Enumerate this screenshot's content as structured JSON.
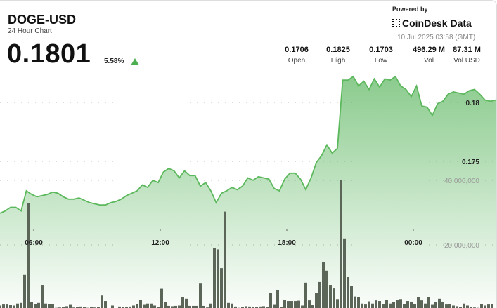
{
  "header": {
    "symbol": "DOGE-USD",
    "subtitle": "24 Hour Chart",
    "price": "0.1801",
    "change": "5.58%",
    "change_direction": "up",
    "powered_by": "Powered by",
    "brand": "CoinDesk Data",
    "timestamp": "10 Jul 2025 03:58 (GMT)"
  },
  "stats": [
    {
      "value": "0.1706",
      "label": "Open"
    },
    {
      "value": "0.1825",
      "label": "High"
    },
    {
      "value": "0.1703",
      "label": "Low"
    },
    {
      "value": "496.29 M",
      "label": "Vol"
    },
    {
      "value": "87.31 M",
      "label": "Vol USD"
    }
  ],
  "colors": {
    "line": "#5cb85c",
    "fill": "#4caf50",
    "volume": "#5b6659",
    "up": "#4caf50"
  },
  "chart_data": {
    "type": "area",
    "price": {
      "start_time": "2025-07-09 04:24",
      "interval_minutes": 15,
      "values": [
        0.1706,
        0.1708,
        0.1711,
        0.1711,
        0.1708,
        0.1725,
        0.1722,
        0.172,
        0.1721,
        0.1722,
        0.1724,
        0.1723,
        0.172,
        0.1718,
        0.1718,
        0.1719,
        0.1717,
        0.1715,
        0.1714,
        0.1713,
        0.1713,
        0.1715,
        0.1716,
        0.1718,
        0.1721,
        0.1723,
        0.1725,
        0.173,
        0.1728,
        0.1734,
        0.1732,
        0.1741,
        0.1744,
        0.1742,
        0.1736,
        0.1742,
        0.1738,
        0.1738,
        0.1729,
        0.1732,
        0.1725,
        0.1715,
        0.1723,
        0.1725,
        0.1728,
        0.1726,
        0.1729,
        0.1736,
        0.1734,
        0.1737,
        0.1736,
        0.1735,
        0.1727,
        0.1725,
        0.1735,
        0.174,
        0.174,
        0.1735,
        0.1726,
        0.1736,
        0.1749,
        0.1755,
        0.1764,
        0.1757,
        0.1761,
        0.1819,
        0.1819,
        0.1822,
        0.1814,
        0.1818,
        0.1811,
        0.182,
        0.1813,
        0.182,
        0.1819,
        0.1822,
        0.1814,
        0.1811,
        0.1805,
        0.1814,
        0.1797,
        0.1796,
        0.1789,
        0.1799,
        0.1801,
        0.1807,
        0.1809,
        0.1808,
        0.1807,
        0.181,
        0.1811,
        0.1807,
        0.1802,
        0.1801,
        0.1802
      ],
      "y_ticks": [
        {
          "value": 0.18,
          "label": "0.18"
        },
        {
          "value": 0.175,
          "label": "0.175"
        }
      ]
    },
    "volume": {
      "start_time": "2025-07-09 04:24",
      "interval_minutes": 10,
      "values_millions": [
        1.2,
        1.5,
        1.5,
        1.3,
        1.2,
        1.8,
        2.0,
        10.7,
        33,
        2.2,
        1.6,
        2.0,
        7.6,
        1.8,
        1.6,
        1.7,
        0.5,
        0.6,
        0.8,
        1.0,
        1.4,
        0.6,
        0.8,
        0.9,
        0.7,
        0.5,
        0.8,
        0.6,
        0.7,
        4.3,
        2.6,
        0.3,
        1.2,
        0.2,
        0.9,
        0.7,
        0.8,
        0.9,
        1.2,
        1.6,
        3.0,
        1.4,
        1.8,
        1.8,
        1.2,
        0.8,
        6.4,
        2.3,
        1.1,
        1.0,
        1.1,
        1.2,
        3.8,
        3.3,
        1.1,
        1.1,
        1.1,
        8.0,
        1.1,
        0.6,
        1.8,
        19,
        18.6,
        12.8,
        30.3,
        2.0,
        1.8,
        0.9,
        0.5,
        0.8,
        1.0,
        0.9,
        0.8,
        0.7,
        0.9,
        1.0,
        0.8,
        5.0,
        1.4,
        6.0,
        0.8,
        3.0,
        2.6,
        2.6,
        2.6,
        2.7,
        1.2,
        8.3,
        2.8,
        1.3,
        5.0,
        8.5,
        14.6,
        12.0,
        7.6,
        6.5,
        3.2,
        40,
        22,
        10,
        7.2,
        4.0,
        3.8,
        1.8,
        1.5,
        2.5,
        1.8,
        2.8,
        2.6,
        1.6,
        3.0,
        1.8,
        2.2,
        3.0,
        3.2,
        1.6,
        2.6,
        2.4,
        1.6,
        3.8,
        2.8,
        1.8,
        3.9,
        1.4,
        2.2,
        3.3,
        2.4,
        1.5,
        1.6,
        1.2,
        1.0,
        0.8,
        1.8,
        1.2,
        0.7,
        0.6,
        0.5,
        1.6,
        1.2,
        1.5,
        1.6
      ],
      "y_ticks": [
        {
          "value": 40000000,
          "label": "40,000,000"
        },
        {
          "value": 20000000,
          "label": "20,000,000"
        }
      ]
    },
    "x_ticks": [
      {
        "time": "2025-07-09 06:00",
        "label": "06:00"
      },
      {
        "time": "2025-07-09 12:00",
        "label": "12:00"
      },
      {
        "time": "2025-07-09 18:00",
        "label": "18:00"
      },
      {
        "time": "2025-07-10 00:00",
        "label": "00:00"
      }
    ],
    "grid": "dotted horizontal"
  }
}
